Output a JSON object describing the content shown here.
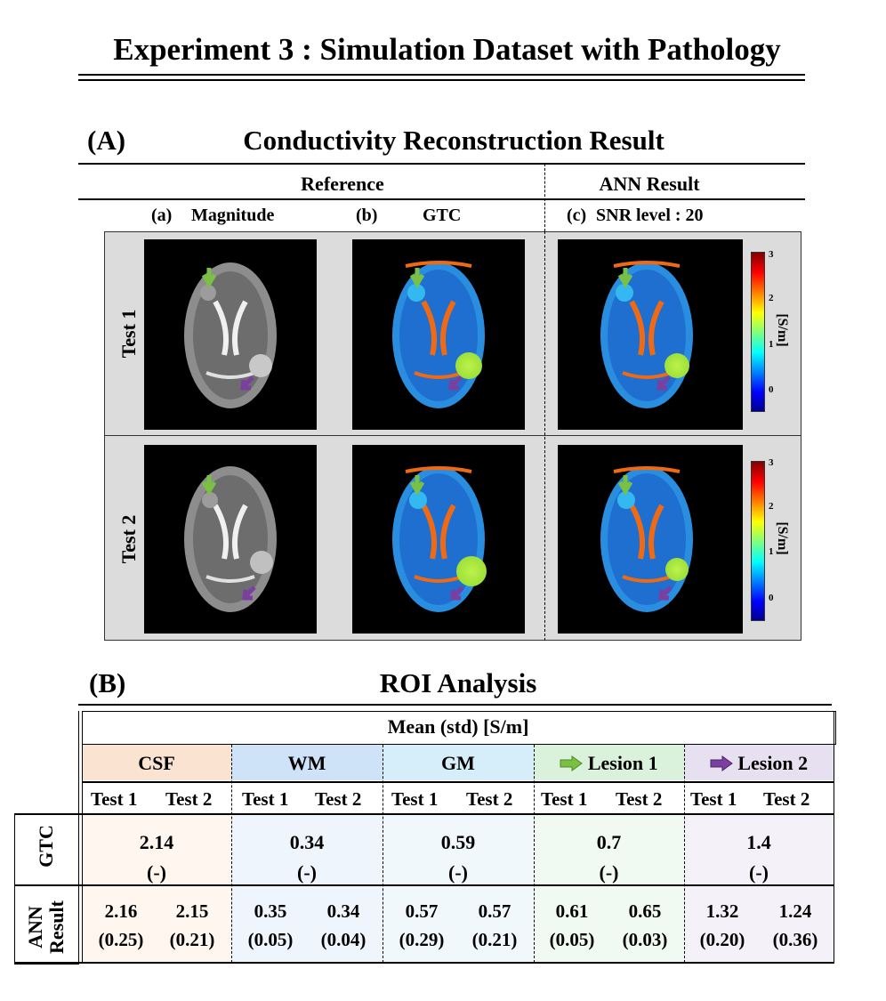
{
  "title": "Experiment 3 : Simulation Dataset with Pathology",
  "sectionA": {
    "label": "(A)",
    "title": "Conductivity Reconstruction Result",
    "group_reference": "Reference",
    "group_ann": "ANN Result",
    "col_a_letter": "(a)",
    "col_a_name": "Magnitude",
    "col_b_letter": "(b)",
    "col_b_name": "GTC",
    "col_c_letter": "(c)",
    "col_c_name": "SNR level : 20",
    "row1": "Test 1",
    "row2": "Test 2",
    "colorbar": {
      "unit": "[S/m]",
      "ticks": [
        "3",
        "2",
        "1",
        "0"
      ]
    }
  },
  "sectionB": {
    "label": "(B)",
    "title": "ROI Analysis",
    "header": "Mean (std) [S/m]",
    "columns": [
      "CSF",
      "WM",
      "GM",
      "Lesion 1",
      "Lesion 2"
    ],
    "subheaders": [
      "Test 1",
      "Test 2"
    ],
    "row_gtc": "GTC",
    "row_ann": "ANN Result",
    "gtc": [
      {
        "mean": "2.14",
        "std": "(-)"
      },
      {
        "mean": "0.34",
        "std": "(-)"
      },
      {
        "mean": "0.59",
        "std": "(-)"
      },
      {
        "mean": "0.7",
        "std": "(-)"
      },
      {
        "mean": "1.4",
        "std": "(-)"
      }
    ],
    "ann": [
      {
        "t1": "2.16",
        "t1s": "(0.25)",
        "t2": "2.15",
        "t2s": "(0.21)"
      },
      {
        "t1": "0.35",
        "t1s": "(0.05)",
        "t2": "0.34",
        "t2s": "(0.04)"
      },
      {
        "t1": "0.57",
        "t1s": "(0.29)",
        "t2": "0.57",
        "t2s": "(0.21)"
      },
      {
        "t1": "0.61",
        "t1s": "(0.05)",
        "t2": "0.65",
        "t2s": "(0.03)"
      },
      {
        "t1": "1.32",
        "t1s": "(0.20)",
        "t2": "1.24",
        "t2s": "(0.36)"
      }
    ],
    "colors": {
      "csf_head": "#fbe3d1",
      "csf_body": "#fef6ef",
      "wm_head": "#cfe3f8",
      "wm_body": "#eef5fc",
      "gm_head": "#d5eefa",
      "gm_body": "#f0f8fc",
      "l1_head": "#daf1dc",
      "l1_body": "#f1faf2",
      "l2_head": "#e6e0f0",
      "l2_body": "#f4f2f8"
    }
  }
}
